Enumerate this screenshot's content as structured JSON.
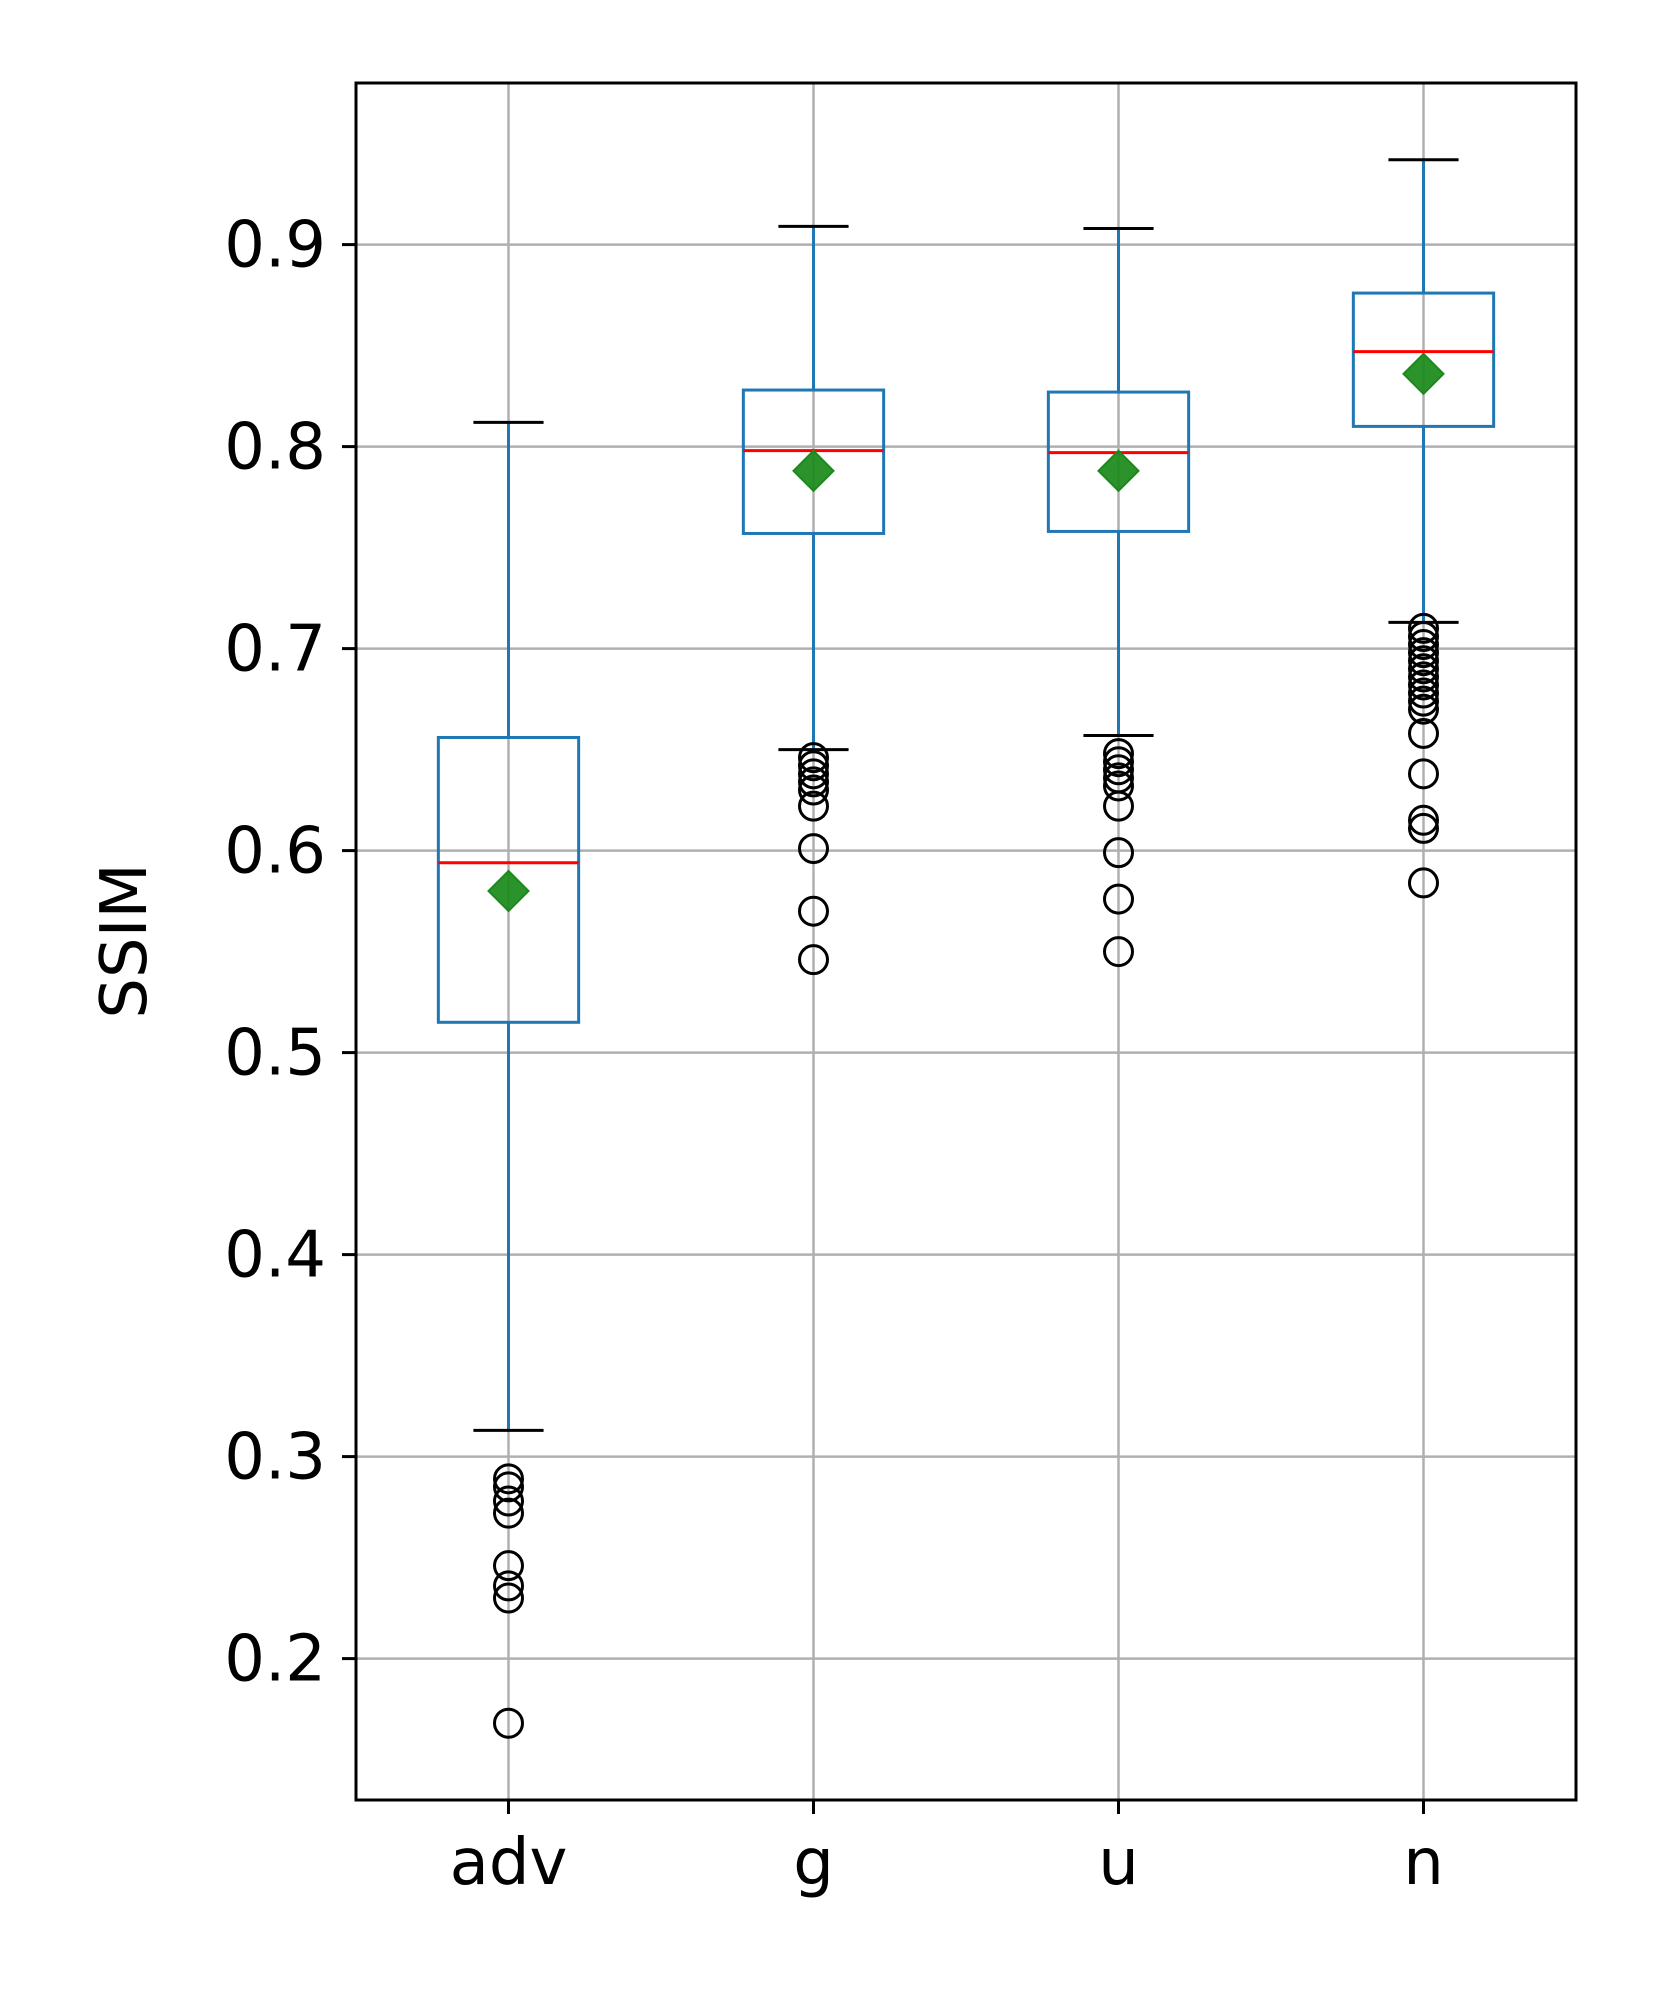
{
  "chart_data": {
    "type": "box",
    "title": "",
    "xlabel": "",
    "ylabel": "SSIM",
    "ylim": [
      0.13,
      0.98
    ],
    "yticks": [
      0.2,
      0.3,
      0.4,
      0.5,
      0.6,
      0.7,
      0.8,
      0.9
    ],
    "ytick_labels": [
      "0.2",
      "0.3",
      "0.4",
      "0.5",
      "0.6",
      "0.7",
      "0.8",
      "0.9"
    ],
    "categories": [
      "adv",
      "g",
      "u",
      "n"
    ],
    "grid": true,
    "boxes": [
      {
        "category": "adv",
        "whisker_low": 0.313,
        "q1": 0.515,
        "median": 0.594,
        "q3": 0.656,
        "whisker_high": 0.812,
        "mean": 0.58,
        "outliers": [
          0.289,
          0.285,
          0.278,
          0.272,
          0.246,
          0.236,
          0.23,
          0.168
        ]
      },
      {
        "category": "g",
        "whisker_low": 0.65,
        "q1": 0.757,
        "median": 0.798,
        "q3": 0.828,
        "whisker_high": 0.909,
        "mean": 0.788,
        "outliers": [
          0.646,
          0.642,
          0.638,
          0.634,
          0.63,
          0.622,
          0.601,
          0.57,
          0.546
        ]
      },
      {
        "category": "u",
        "whisker_low": 0.657,
        "q1": 0.758,
        "median": 0.797,
        "q3": 0.827,
        "whisker_high": 0.908,
        "mean": 0.788,
        "outliers": [
          0.648,
          0.644,
          0.64,
          0.636,
          0.632,
          0.622,
          0.599,
          0.576,
          0.55
        ]
      },
      {
        "category": "n",
        "whisker_low": 0.713,
        "q1": 0.81,
        "median": 0.847,
        "q3": 0.876,
        "whisker_high": 0.942,
        "mean": 0.836,
        "outliers": [
          0.71,
          0.706,
          0.702,
          0.698,
          0.694,
          0.69,
          0.686,
          0.682,
          0.678,
          0.674,
          0.67,
          0.658,
          0.638,
          0.615,
          0.611,
          0.584
        ]
      }
    ],
    "colors": {
      "box": "#1f77b4",
      "median": "#ff0000",
      "mean_marker": "#1a8a1a",
      "whisker_cap": "#000000",
      "outlier": "#000000",
      "grid": "#b0b0b0"
    }
  }
}
